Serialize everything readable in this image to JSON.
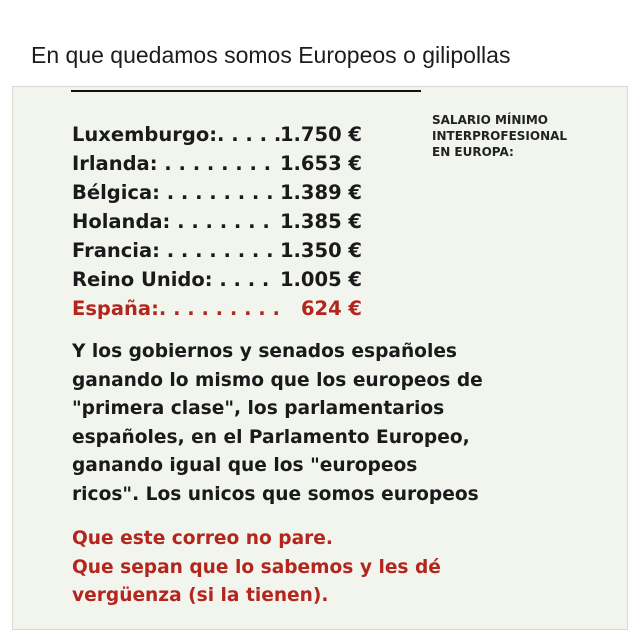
{
  "post": {
    "text": "En que quedamos somos Europeos o gilipollas"
  },
  "image": {
    "caption": [
      "SALARIO MÍNIMO",
      "INTERPROFESIONAL",
      "EN EUROPA:"
    ],
    "rows": [
      {
        "label": "Luxemburgo:. . . . .",
        "value": "1.750 €"
      },
      {
        "label": "Irlanda: . . . . . . . .",
        "value": "1.653 €"
      },
      {
        "label": "Bélgica: . . . . . . . .",
        "value": "1.389 €"
      },
      {
        "label": "Holanda: . . . . . . .",
        "value": "1.385 €"
      },
      {
        "label": "Francia: . . . . . . . .",
        "value": "1.350 €"
      },
      {
        "label": "Reino Unido: . . . .",
        "value": "1.005 €"
      },
      {
        "label": "España:. . . . . . . . .",
        "value": "624 €"
      }
    ],
    "paragraph": [
      "Y los gobiernos y senados españoles",
      "ganando lo mismo que los europeos de",
      "\"primera clase\", los parlamentarios",
      "españoles, en el Parlamento Europeo,",
      "ganando igual que los \"europeos",
      "ricos\". Los unicos que somos europeos"
    ],
    "closing": [
      "Que este correo no pare.",
      "Que sepan que lo sabemos y les dé",
      "vergüenza (si la tienen)."
    ]
  }
}
